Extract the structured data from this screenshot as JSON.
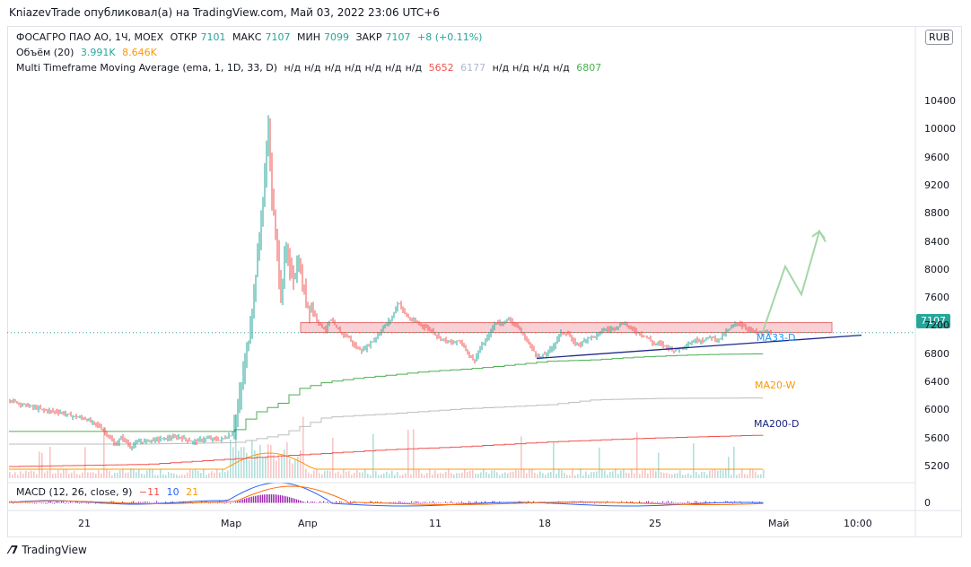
{
  "publisher": "KniazevTrade опубликовал(а) на TradingView.com, Май 03, 2022 23:06 UTC+6",
  "header": {
    "symbol": "ФОСАГРО ПАО АО, 1Ч, MOEX",
    "open_label": "ОТКР",
    "open": "7101",
    "high_label": "МАКС",
    "high": "7107",
    "low_label": "МИН",
    "low": "7099",
    "close_label": "ЗАКР",
    "close": "7107",
    "change": "+8 (+0.11%)"
  },
  "volume_legend": {
    "label": "Объём (20)",
    "v1": "3.991K",
    "v2": "8.646K"
  },
  "mtfma_legend": {
    "label": "Multi Timeframe Moving Average (ema, 1, 1D, 33, D)",
    "na": "н/д",
    "v1": "5652",
    "v2": "6177",
    "v3": "6807"
  },
  "macd_legend": {
    "label": "MACD (12, 26, close, 9)",
    "v1": "−11",
    "v2": "10",
    "v3": "21"
  },
  "currency": "RUB",
  "current_price": "7107",
  "ma_labels": {
    "ma33": "MA33-D",
    "ma20w": "MA20-W",
    "ma200": "MA200-D"
  },
  "macd_axis_label": "0",
  "footer": "TradingView",
  "colors": {
    "up": "#26a69a",
    "down": "#ef5350",
    "ma33": "#4caf50",
    "ma20w": "#bdbdbd",
    "ma200": "#ef5350",
    "trend": "#1e2a8a",
    "zone": "#f8c8cc",
    "forecast": "#a5d6a7"
  },
  "chart_data": {
    "type": "candlestick",
    "y_ticks": [
      10400,
      10000,
      9600,
      9200,
      8800,
      8400,
      8000,
      7600,
      7200,
      6800,
      6400,
      6000,
      5600,
      5200
    ],
    "x_ticks": [
      "21",
      "Мар",
      "Апр",
      "11",
      "18",
      "25",
      "Май",
      "10:00"
    ],
    "ylim": [
      5000,
      10600
    ],
    "last_price": 7107,
    "price_path": [
      [
        0,
        6150
      ],
      [
        12,
        6100
      ],
      [
        25,
        6050
      ],
      [
        40,
        6000
      ],
      [
        55,
        5980
      ],
      [
        70,
        5920
      ],
      [
        85,
        5880
      ],
      [
        100,
        5780
      ],
      [
        110,
        5650
      ],
      [
        118,
        5500
      ],
      [
        126,
        5620
      ],
      [
        135,
        5480
      ],
      [
        145,
        5550
      ],
      [
        160,
        5580
      ],
      [
        175,
        5600
      ],
      [
        190,
        5620
      ],
      [
        205,
        5550
      ],
      [
        220,
        5600
      ],
      [
        235,
        5580
      ],
      [
        248,
        5650
      ],
      [
        255,
        6000
      ],
      [
        262,
        6600
      ],
      [
        268,
        7100
      ],
      [
        274,
        7800
      ],
      [
        280,
        8600
      ],
      [
        285,
        9300
      ],
      [
        289,
        10100
      ],
      [
        293,
        9000
      ],
      [
        298,
        8400
      ],
      [
        303,
        7600
      ],
      [
        308,
        8300
      ],
      [
        313,
        8000
      ],
      [
        318,
        7900
      ],
      [
        323,
        8100
      ],
      [
        328,
        7700
      ],
      [
        333,
        7500
      ],
      [
        338,
        7450
      ],
      [
        343,
        7300
      ],
      [
        348,
        7200
      ],
      [
        353,
        7150
      ],
      [
        358,
        7300
      ],
      [
        363,
        7200
      ],
      [
        370,
        7100
      ],
      [
        378,
        7050
      ],
      [
        386,
        6900
      ],
      [
        394,
        6850
      ],
      [
        402,
        6950
      ],
      [
        410,
        7050
      ],
      [
        418,
        7200
      ],
      [
        426,
        7300
      ],
      [
        434,
        7550
      ],
      [
        440,
        7400
      ],
      [
        446,
        7300
      ],
      [
        454,
        7250
      ],
      [
        462,
        7200
      ],
      [
        470,
        7150
      ],
      [
        478,
        7050
      ],
      [
        486,
        7000
      ],
      [
        494,
        6950
      ],
      [
        502,
        7000
      ],
      [
        510,
        6850
      ],
      [
        518,
        6700
      ],
      [
        526,
        6900
      ],
      [
        534,
        7050
      ],
      [
        542,
        7250
      ],
      [
        550,
        7250
      ],
      [
        558,
        7300
      ],
      [
        566,
        7200
      ],
      [
        574,
        7050
      ],
      [
        582,
        6900
      ],
      [
        590,
        6750
      ],
      [
        598,
        6800
      ],
      [
        606,
        6900
      ],
      [
        614,
        7100
      ],
      [
        622,
        7100
      ],
      [
        630,
        6950
      ],
      [
        638,
        6950
      ],
      [
        646,
        7050
      ],
      [
        654,
        7050
      ],
      [
        662,
        7150
      ],
      [
        670,
        7150
      ],
      [
        678,
        7200
      ],
      [
        686,
        7250
      ],
      [
        694,
        7150
      ],
      [
        702,
        7100
      ],
      [
        710,
        7050
      ],
      [
        718,
        6950
      ],
      [
        726,
        6950
      ],
      [
        734,
        6900
      ],
      [
        742,
        6850
      ],
      [
        750,
        6900
      ],
      [
        758,
        6950
      ],
      [
        766,
        7000
      ],
      [
        774,
        7000
      ],
      [
        782,
        7050
      ],
      [
        790,
        7000
      ],
      [
        798,
        7100
      ],
      [
        806,
        7200
      ],
      [
        812,
        7250
      ],
      [
        818,
        7200
      ],
      [
        826,
        7150
      ],
      [
        834,
        7100
      ],
      [
        842,
        7110
      ],
      [
        850,
        7107
      ]
    ],
    "ma33_d": [
      [
        0,
        5700
      ],
      [
        100,
        5700
      ],
      [
        180,
        5700
      ],
      [
        250,
        5700
      ],
      [
        270,
        5950
      ],
      [
        300,
        6100
      ],
      [
        320,
        6300
      ],
      [
        350,
        6400
      ],
      [
        380,
        6450
      ],
      [
        420,
        6500
      ],
      [
        460,
        6550
      ],
      [
        520,
        6600
      ],
      [
        560,
        6650
      ],
      [
        600,
        6700
      ],
      [
        650,
        6720
      ],
      [
        700,
        6760
      ],
      [
        760,
        6790
      ],
      [
        800,
        6800
      ],
      [
        850,
        6807
      ]
    ],
    "ma20_w": [
      [
        0,
        5520
      ],
      [
        150,
        5520
      ],
      [
        250,
        5540
      ],
      [
        300,
        5650
      ],
      [
        350,
        5900
      ],
      [
        420,
        5950
      ],
      [
        500,
        6020
      ],
      [
        600,
        6080
      ],
      [
        650,
        6150
      ],
      [
        720,
        6170
      ],
      [
        850,
        6177
      ]
    ],
    "ma200_d": [
      [
        0,
        5200
      ],
      [
        150,
        5230
      ],
      [
        300,
        5350
      ],
      [
        420,
        5440
      ],
      [
        500,
        5480
      ],
      [
        600,
        5550
      ],
      [
        700,
        5600
      ],
      [
        850,
        5652
      ]
    ],
    "resistance_zone": {
      "x_from": 335,
      "x_to": 927,
      "low": 7110,
      "high": 7250
    },
    "trendline": [
      [
        598,
        6740
      ],
      [
        960,
        7070
      ]
    ],
    "forecast": [
      [
        850,
        7120
      ],
      [
        875,
        8050
      ],
      [
        893,
        7650
      ],
      [
        913,
        8550
      ],
      [
        920,
        8400
      ]
    ],
    "macd_axis": [
      0
    ]
  }
}
